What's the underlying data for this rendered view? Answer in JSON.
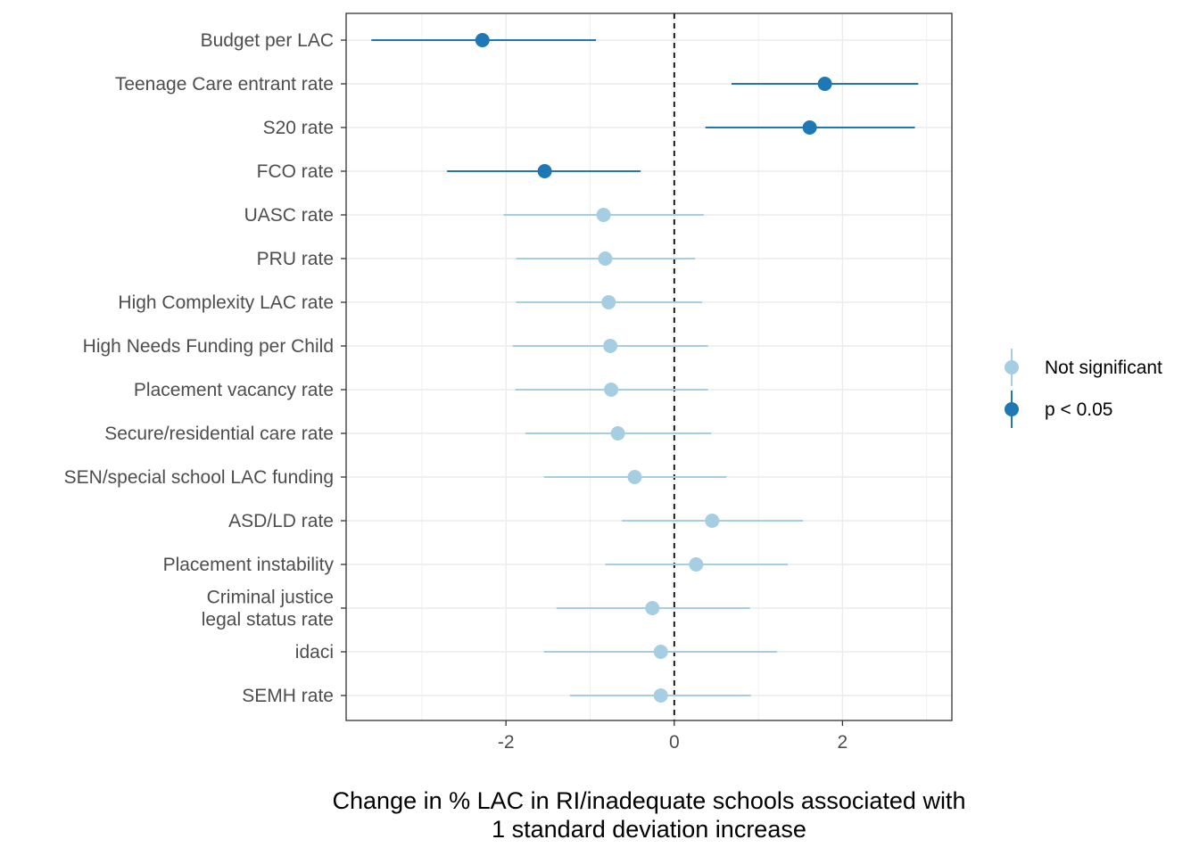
{
  "chart_data": {
    "type": "scatter",
    "subtype": "forest-plot (point estimate with confidence interval)",
    "title": "",
    "xlabel": "Change in % LAC in RI/inadequate schools associated with\n1 standard deviation increase",
    "ylabel": "",
    "xlim": [
      -3.9,
      3.3
    ],
    "xticks": [
      -2,
      0,
      2
    ],
    "x_tick_labels": [
      "-2",
      "0",
      "2"
    ],
    "reference_line": {
      "x": 0,
      "style": "dashed"
    },
    "grid": true,
    "legend_position": "right",
    "legend": [
      {
        "key": "ns",
        "label": "Not significant",
        "color": "#a6cee3"
      },
      {
        "key": "sig",
        "label": "p < 0.05",
        "color": "#1f78b4"
      }
    ],
    "series": [
      {
        "label": "Budget per LAC",
        "estimate": -2.28,
        "ci_low": -3.6,
        "ci_high": -0.93,
        "group": "sig"
      },
      {
        "label": "Teenage Care entrant rate",
        "estimate": 1.79,
        "ci_low": 0.68,
        "ci_high": 2.9,
        "group": "sig"
      },
      {
        "label": "S20 rate",
        "estimate": 1.61,
        "ci_low": 0.37,
        "ci_high": 2.86,
        "group": "sig"
      },
      {
        "label": "FCO rate",
        "estimate": -1.54,
        "ci_low": -2.7,
        "ci_high": -0.4,
        "group": "sig"
      },
      {
        "label": "UASC rate",
        "estimate": -0.84,
        "ci_low": -2.03,
        "ci_high": 0.35,
        "group": "ns"
      },
      {
        "label": "PRU rate",
        "estimate": -0.82,
        "ci_low": -1.88,
        "ci_high": 0.25,
        "group": "ns"
      },
      {
        "label": "High Complexity LAC rate",
        "estimate": -0.78,
        "ci_low": -1.88,
        "ci_high": 0.33,
        "group": "ns"
      },
      {
        "label": "High Needs Funding per Child",
        "estimate": -0.76,
        "ci_low": -1.92,
        "ci_high": 0.4,
        "group": "ns"
      },
      {
        "label": "Placement vacancy rate",
        "estimate": -0.75,
        "ci_low": -1.89,
        "ci_high": 0.4,
        "group": "ns"
      },
      {
        "label": "Secure/residential care rate",
        "estimate": -0.67,
        "ci_low": -1.77,
        "ci_high": 0.44,
        "group": "ns"
      },
      {
        "label": "SEN/special school LAC funding",
        "estimate": -0.47,
        "ci_low": -1.55,
        "ci_high": 0.62,
        "group": "ns"
      },
      {
        "label": "ASD/LD rate",
        "estimate": 0.45,
        "ci_low": -0.62,
        "ci_high": 1.53,
        "group": "ns"
      },
      {
        "label": "Placement instability",
        "estimate": 0.26,
        "ci_low": -0.82,
        "ci_high": 1.35,
        "group": "ns"
      },
      {
        "label": "Criminal justice\nlegal status rate",
        "estimate": -0.26,
        "ci_low": -1.4,
        "ci_high": 0.9,
        "group": "ns"
      },
      {
        "label": "idaci",
        "estimate": -0.16,
        "ci_low": -1.55,
        "ci_high": 1.22,
        "group": "ns"
      },
      {
        "label": "SEMH rate",
        "estimate": -0.16,
        "ci_low": -1.24,
        "ci_high": 0.91,
        "group": "ns"
      }
    ]
  }
}
